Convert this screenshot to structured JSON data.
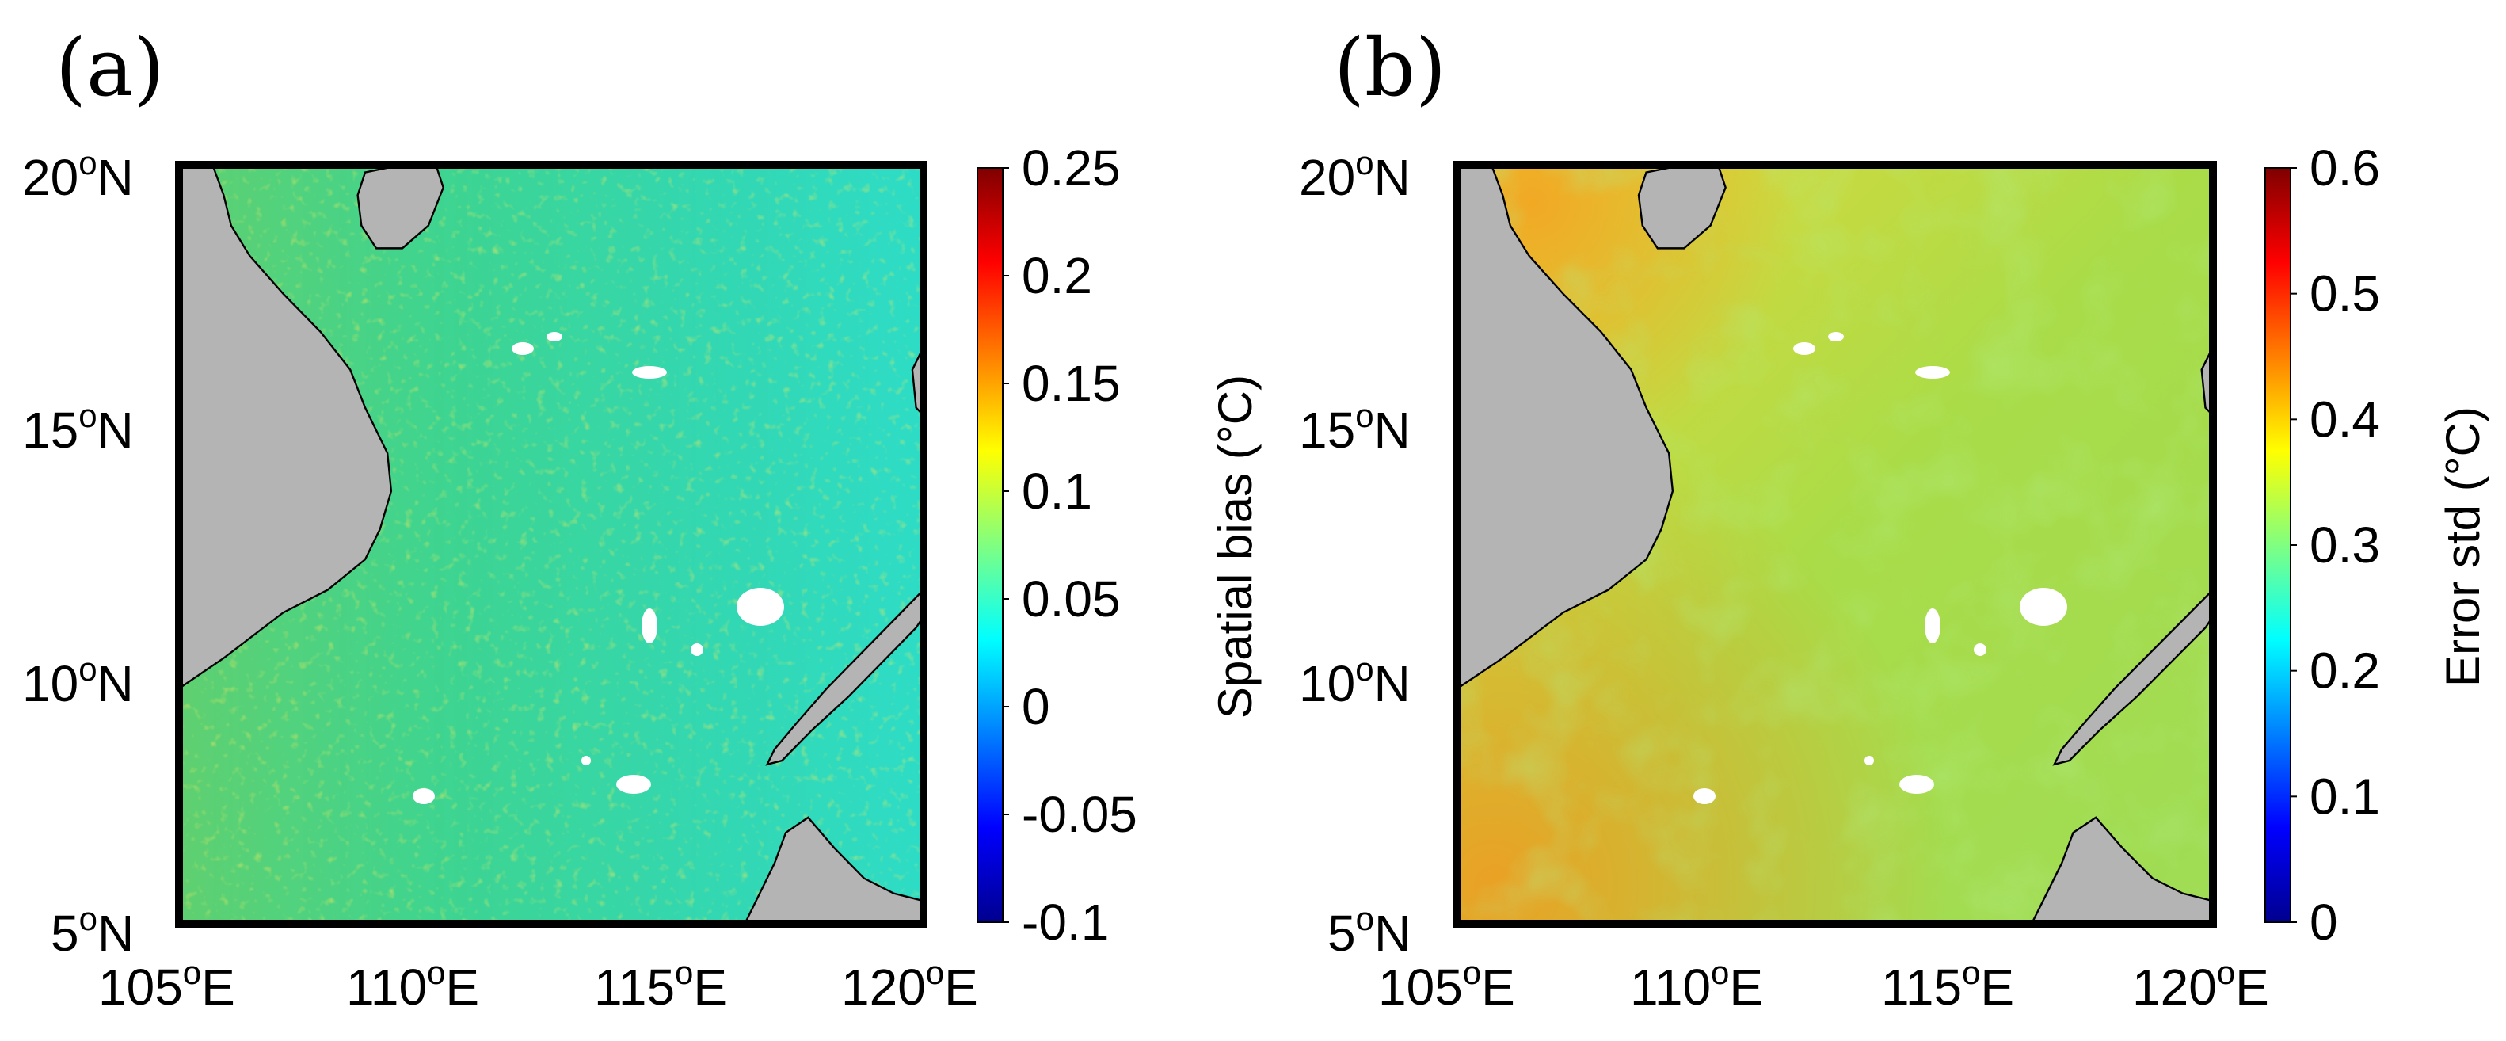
{
  "figure": {
    "panels": [
      {
        "id": "a",
        "label": "(a)",
        "lat_ticks": [
          {
            "value": 20,
            "text": "20",
            "deg": "o",
            "hem": "N"
          },
          {
            "value": 15,
            "text": "15",
            "deg": "o",
            "hem": "N"
          },
          {
            "value": 10,
            "text": "10",
            "deg": "o",
            "hem": "N"
          },
          {
            "value": 5,
            "text": "5",
            "deg": "o",
            "hem": "N"
          }
        ],
        "lon_ticks": [
          {
            "value": 105,
            "text": "105",
            "deg": "o",
            "hem": "E"
          },
          {
            "value": 110,
            "text": "110",
            "deg": "o",
            "hem": "E"
          },
          {
            "value": 115,
            "text": "115",
            "deg": "o",
            "hem": "E"
          },
          {
            "value": 120,
            "text": "120",
            "deg": "o",
            "hem": "E"
          }
        ],
        "colorbar": {
          "label": "Spatial bias (°C)",
          "min": -0.1,
          "max": 0.25,
          "ticks": [
            "0.25",
            "0.2",
            "0.15",
            "0.1",
            "0.05",
            "0",
            "-0.05",
            "-0.1"
          ]
        }
      },
      {
        "id": "b",
        "label": "(b)",
        "lat_ticks": [
          {
            "value": 20,
            "text": "20",
            "deg": "o",
            "hem": "N"
          },
          {
            "value": 15,
            "text": "15",
            "deg": "o",
            "hem": "N"
          },
          {
            "value": 10,
            "text": "10",
            "deg": "o",
            "hem": "N"
          },
          {
            "value": 5,
            "text": "5",
            "deg": "o",
            "hem": "N"
          }
        ],
        "lon_ticks": [
          {
            "value": 105,
            "text": "105",
            "deg": "o",
            "hem": "E"
          },
          {
            "value": 110,
            "text": "110",
            "deg": "o",
            "hem": "E"
          },
          {
            "value": 115,
            "text": "115",
            "deg": "o",
            "hem": "E"
          },
          {
            "value": 120,
            "text": "120",
            "deg": "o",
            "hem": "E"
          }
        ],
        "colorbar": {
          "label": "Error std (°C)",
          "min": 0,
          "max": 0.6,
          "ticks": [
            "0.6",
            "0.5",
            "0.4",
            "0.3",
            "0.2",
            "0.1",
            "0"
          ]
        }
      }
    ],
    "colors": {
      "land": "#b4b4b4",
      "a_field": "#33d29a",
      "b_field": "#a8dc3c",
      "jet": [
        "#00008f",
        "#0000ff",
        "#0080ff",
        "#00ffff",
        "#80ff80",
        "#ffff00",
        "#ff8000",
        "#ff0000",
        "#800000"
      ]
    }
  }
}
